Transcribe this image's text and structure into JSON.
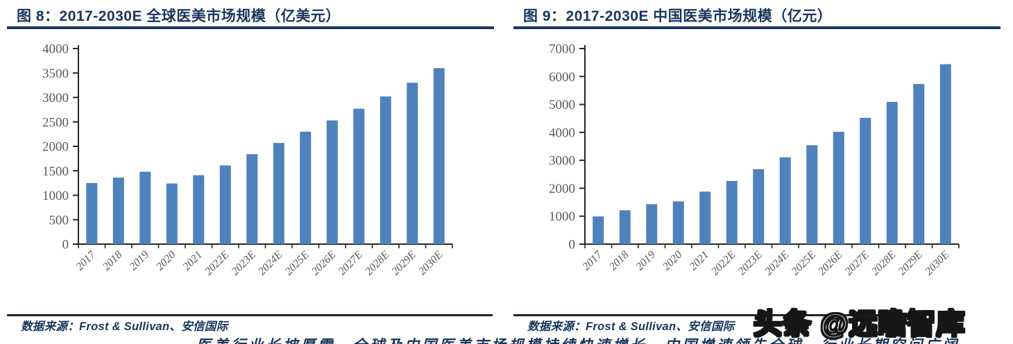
{
  "colors": {
    "bar": "#4F81BD",
    "title": "#17365D",
    "axis_line": "#262626",
    "y_label": "#565A63",
    "x_label": "#575757",
    "rule": "#17365D"
  },
  "figures": [
    {
      "title": "图 8：2017-2030E 全球医美市场规模（亿美元）",
      "source_label": "数据来源：Frost & Sullivan、安信国际"
    },
    {
      "title": "图 9：2017-2030E 中国医美市场规模（亿元）",
      "source_label": "数据来源：Frost & Sullivan、安信国际"
    }
  ],
  "watermark": {
    "text": "头条 @远瞻智库"
  },
  "clipped_bottom_text": "医美行业长坡厚雪，全球及中国医美市场规模持续快速增长，中国增速领先全球，行业长期空间广阔",
  "chart_data": [
    {
      "type": "bar",
      "title": "图 8：2017-2030E 全球医美市场规模（亿美元）",
      "categories": [
        "2017",
        "2018",
        "2019",
        "2020",
        "2021",
        "2022E",
        "2023E",
        "2024E",
        "2025E",
        "2026E",
        "2027E",
        "2028E",
        "2029E",
        "2030E"
      ],
      "values": [
        1250,
        1360,
        1480,
        1240,
        1410,
        1610,
        1840,
        2070,
        2300,
        2530,
        2770,
        3020,
        3300,
        3600
      ],
      "xlabel": "",
      "ylabel": "",
      "ylim": [
        0,
        4000
      ],
      "ytick_step": 500,
      "grid": false,
      "legend": null,
      "bar_color": "#4F81BD"
    },
    {
      "type": "bar",
      "title": "图 9：2017-2030E 中国医美市场规模（亿元）",
      "categories": [
        "2017",
        "2018",
        "2019",
        "2020",
        "2021",
        "2022E",
        "2023E",
        "2024E",
        "2025E",
        "2026E",
        "2027E",
        "2028E",
        "2029E",
        "2030E"
      ],
      "values": [
        990,
        1210,
        1430,
        1530,
        1880,
        2260,
        2680,
        3110,
        3540,
        4020,
        4520,
        5090,
        5730,
        6440
      ],
      "xlabel": "",
      "ylabel": "",
      "ylim": [
        0,
        7000
      ],
      "ytick_step": 1000,
      "grid": false,
      "legend": null,
      "bar_color": "#4F81BD"
    }
  ]
}
